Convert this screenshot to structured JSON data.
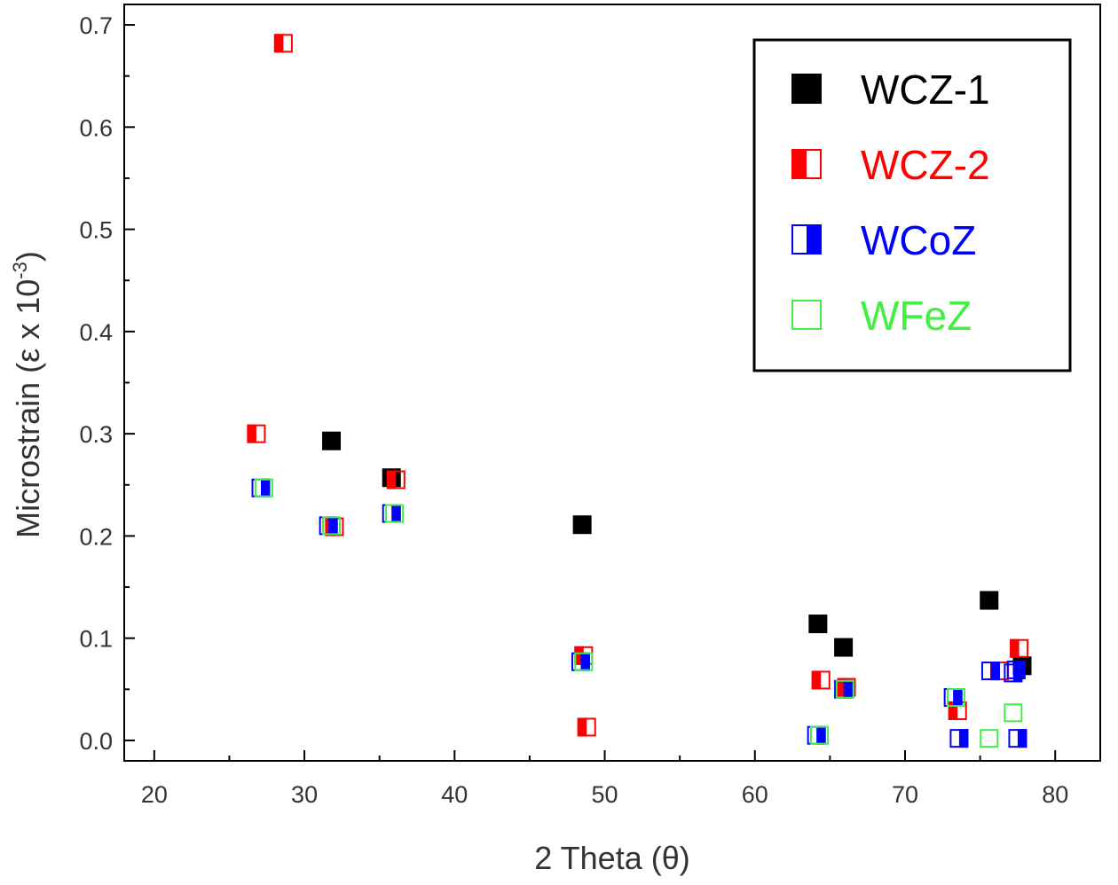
{
  "chart_data": {
    "type": "scatter",
    "xlabel": "2 Theta (θ)",
    "ylabel_main": "Microstrain (ε x 10",
    "ylabel_exp": "-3",
    "ylabel_close": ")",
    "xlim": [
      18,
      83
    ],
    "ylim": [
      -0.02,
      0.72
    ],
    "x_ticks": [
      20,
      30,
      40,
      50,
      60,
      70,
      80
    ],
    "x_tick_labels": [
      "20",
      "30",
      "40",
      "50",
      "60",
      "70",
      "80"
    ],
    "y_ticks": [
      0.0,
      0.1,
      0.2,
      0.3,
      0.4,
      0.5,
      0.6,
      0.7
    ],
    "y_tick_labels": [
      "0.0",
      "0.1",
      "0.2",
      "0.3",
      "0.4",
      "0.5",
      "0.6",
      "0.7"
    ],
    "legend_position": "top-right",
    "series": [
      {
        "name": "WCZ-1",
        "color": "#000000",
        "marker": "square-filled",
        "points": [
          [
            31.8,
            0.293
          ],
          [
            35.8,
            0.257
          ],
          [
            48.5,
            0.211
          ],
          [
            64.2,
            0.114
          ],
          [
            65.9,
            0.091
          ],
          [
            75.6,
            0.137
          ],
          [
            77.8,
            0.073
          ]
        ]
      },
      {
        "name": "WCZ-2",
        "color": "#ff0000",
        "marker": "square-half-left",
        "points": [
          [
            28.6,
            0.682
          ],
          [
            26.8,
            0.3
          ],
          [
            36.1,
            0.255
          ],
          [
            32.0,
            0.209
          ],
          [
            48.6,
            0.083
          ],
          [
            48.8,
            0.013
          ],
          [
            64.4,
            0.059
          ],
          [
            66.1,
            0.052
          ],
          [
            73.5,
            0.029
          ],
          [
            77.6,
            0.09
          ],
          [
            76.3,
            0.068
          ]
        ]
      },
      {
        "name": "WCoZ",
        "color": "#0000ff",
        "marker": "square-half-right",
        "points": [
          [
            27.1,
            0.247
          ],
          [
            31.6,
            0.21
          ],
          [
            35.8,
            0.222
          ],
          [
            48.4,
            0.077
          ],
          [
            64.1,
            0.005
          ],
          [
            65.9,
            0.05
          ],
          [
            73.2,
            0.042
          ],
          [
            73.6,
            0.002
          ],
          [
            75.7,
            0.068
          ],
          [
            77.2,
            0.066
          ],
          [
            77.4,
            0.069
          ],
          [
            77.5,
            0.002
          ]
        ]
      },
      {
        "name": "WFeZ",
        "color": "#44ee44",
        "marker": "square-open",
        "points": [
          [
            27.3,
            0.247
          ],
          [
            31.8,
            0.21
          ],
          [
            36.0,
            0.222
          ],
          [
            48.6,
            0.077
          ],
          [
            64.3,
            0.005
          ],
          [
            66.0,
            0.05
          ],
          [
            73.4,
            0.042
          ],
          [
            75.6,
            0.002
          ],
          [
            77.2,
            0.027
          ]
        ]
      }
    ]
  }
}
